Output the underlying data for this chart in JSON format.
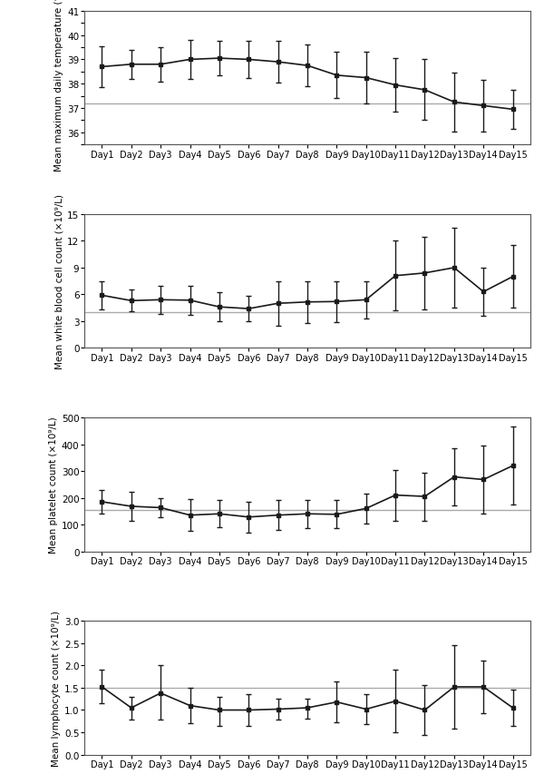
{
  "temp": {
    "ylabel": "Mean maximum daily temperature (°C)",
    "days": [
      "Day1",
      "Day2",
      "Day3",
      "Day4",
      "Day5",
      "Day6",
      "Day7",
      "Day8",
      "Day9",
      "Day10",
      "Day11",
      "Day12",
      "Day13",
      "Day14",
      "Day15"
    ],
    "mean": [
      38.7,
      38.8,
      38.8,
      39.0,
      39.05,
      39.0,
      38.9,
      38.75,
      38.35,
      38.25,
      37.95,
      37.75,
      37.25,
      37.1,
      36.95
    ],
    "sd_upper": [
      39.55,
      39.4,
      39.5,
      39.8,
      39.75,
      39.75,
      39.75,
      39.6,
      39.3,
      39.3,
      39.05,
      39.0,
      38.45,
      38.15,
      37.75
    ],
    "sd_lower": [
      37.85,
      38.2,
      38.1,
      38.2,
      38.35,
      38.25,
      38.05,
      37.9,
      37.4,
      37.2,
      36.85,
      36.5,
      36.05,
      36.05,
      36.15
    ],
    "hline": 37.2,
    "ylim": [
      35.5,
      41.0
    ],
    "yticks": [
      35.5,
      36.0,
      36.5,
      37.0,
      37.5,
      38.0,
      38.5,
      39.0,
      39.5,
      40.0,
      40.5,
      41.0
    ],
    "yticklabels": [
      "",
      "36",
      "",
      "37",
      "",
      "38",
      "",
      "39",
      "",
      "40",
      "",
      "41"
    ]
  },
  "wbc": {
    "ylabel": "Mean white blood cell count (×10⁹/L)",
    "days": [
      "Day1",
      "Day2",
      "Day3",
      "Day4",
      "Day5",
      "Day6",
      "Day7",
      "Day8",
      "Day9",
      "Day10",
      "Day11",
      "Day12",
      "Day13",
      "Day14",
      "Day15"
    ],
    "mean": [
      5.9,
      5.3,
      5.4,
      5.35,
      4.6,
      4.4,
      5.0,
      5.15,
      5.2,
      5.4,
      8.1,
      8.4,
      9.0,
      6.3,
      8.0
    ],
    "sd_upper": [
      7.5,
      6.5,
      7.0,
      7.0,
      6.2,
      5.8,
      7.5,
      7.5,
      7.5,
      7.5,
      12.0,
      12.5,
      13.5,
      9.0,
      11.5
    ],
    "sd_lower": [
      4.3,
      4.1,
      3.8,
      3.7,
      3.0,
      3.0,
      2.5,
      2.8,
      2.9,
      3.3,
      4.2,
      4.3,
      4.5,
      3.6,
      4.5
    ],
    "hline": 4.0,
    "ylim": [
      0,
      15
    ],
    "yticks": [
      0,
      3,
      6,
      9,
      12,
      15
    ],
    "yticklabels": [
      "0",
      "3",
      "6",
      "9",
      "12",
      "15"
    ]
  },
  "platelet": {
    "ylabel": "Mean platelet count (×10⁹/L)",
    "days": [
      "Day1",
      "Day2",
      "Day3",
      "Day4",
      "Day5",
      "Day6",
      "Day7",
      "Day8",
      "Day9",
      "Day10",
      "Day11",
      "Day12",
      "Day13",
      "Day14",
      "Day15"
    ],
    "mean": [
      185,
      168,
      163,
      135,
      140,
      128,
      135,
      140,
      138,
      160,
      210,
      205,
      278,
      268,
      320
    ],
    "sd_upper": [
      230,
      222,
      200,
      195,
      190,
      185,
      190,
      192,
      190,
      215,
      305,
      295,
      385,
      395,
      465
    ],
    "sd_lower": [
      140,
      114,
      126,
      75,
      90,
      71,
      80,
      88,
      86,
      105,
      115,
      115,
      171,
      141,
      175
    ],
    "hline": 155,
    "ylim": [
      0,
      500
    ],
    "yticks": [
      0,
      100,
      200,
      300,
      400,
      500
    ],
    "yticklabels": [
      "0",
      "100",
      "200",
      "300",
      "400",
      "500"
    ]
  },
  "lymphocyte": {
    "ylabel": "Mean lymphocyte count (×10⁹/L)",
    "days": [
      "Day1",
      "Day2",
      "Day3",
      "Day4",
      "Day5",
      "Day6",
      "Day7",
      "Day8",
      "Day9",
      "Day10",
      "Day11",
      "Day12",
      "Day13",
      "Day14",
      "Day15"
    ],
    "mean": [
      1.52,
      1.05,
      1.38,
      1.1,
      1.0,
      1.0,
      1.02,
      1.05,
      1.18,
      1.02,
      1.2,
      1.0,
      1.52,
      1.52,
      1.05
    ],
    "sd_upper": [
      1.9,
      1.3,
      2.0,
      1.5,
      1.3,
      1.35,
      1.25,
      1.25,
      1.65,
      1.35,
      1.9,
      1.55,
      2.45,
      2.1,
      1.45
    ],
    "sd_lower": [
      1.15,
      0.78,
      0.78,
      0.7,
      0.65,
      0.65,
      0.78,
      0.8,
      0.72,
      0.68,
      0.5,
      0.45,
      0.58,
      0.92,
      0.65
    ],
    "hline": 1.5,
    "ylim": [
      0.0,
      3.0
    ],
    "yticks": [
      0.0,
      0.5,
      1.0,
      1.5,
      2.0,
      2.5,
      3.0
    ],
    "yticklabels": [
      "0.0",
      "0.5",
      "1.0",
      "1.5",
      "2.0",
      "2.5",
      "3.0"
    ]
  },
  "line_color": "#1a1a1a",
  "hline_color": "#aaaaaa",
  "bg_color": "#ffffff",
  "marker": "s",
  "markersize": 3.5,
  "linewidth": 1.2,
  "capsize": 2.5,
  "elinewidth": 1.0,
  "fontsize_ylabel": 7.5,
  "fontsize_tick": 7.5,
  "fontsize_xtick": 7.0
}
